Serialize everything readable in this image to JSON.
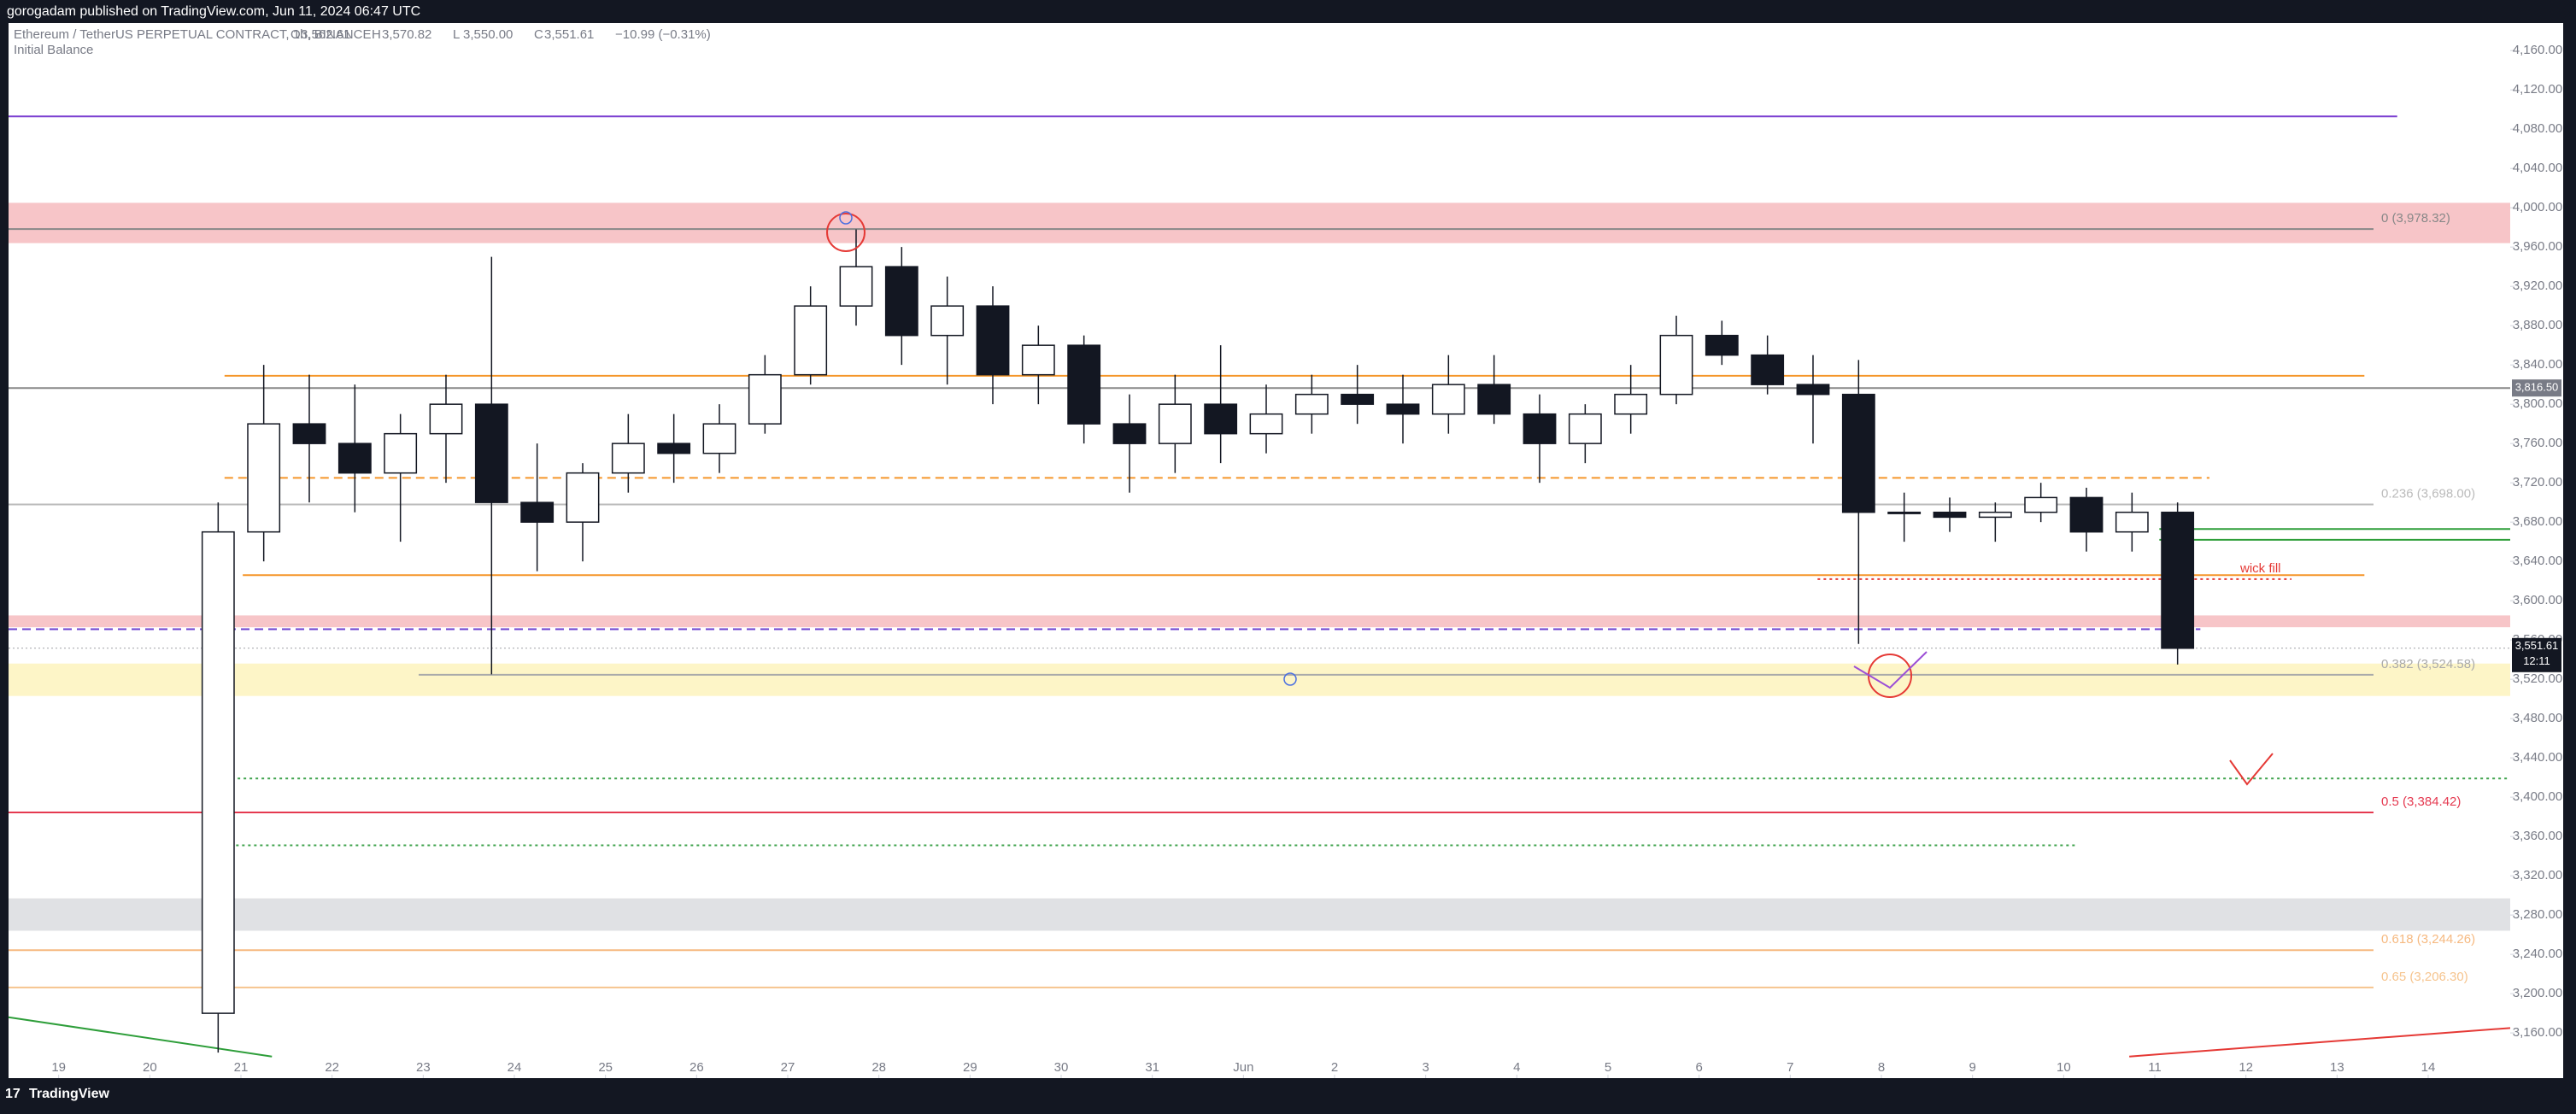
{
  "header": {
    "publisher": "gorogadam published on TradingView.com, Jun 11, 2024 06:47 UTC"
  },
  "footer": {
    "brand": "TradingView"
  },
  "chart_data": {
    "type": "candlestick",
    "symbol": "Ethereum / TetherUS PERPETUAL CONTRACT, 1h, BINANCE",
    "ohlc_legend": [
      {
        "key": "O",
        "text": "3,562.61"
      },
      {
        "key": "H",
        "text": "3,570.82"
      },
      {
        "key": "L",
        "text": "3,550.00"
      },
      {
        "key": "C",
        "text": "3,551.61"
      }
    ],
    "change": "−10.99 (−0.31%)",
    "indicator": "Initial Balance",
    "x": [
      1.5,
      2,
      2.5,
      3,
      3.5,
      4,
      4.5,
      5,
      5.5,
      6,
      6.5,
      7,
      7.5,
      8,
      8.5,
      9,
      9.5,
      10,
      10.5,
      11,
      11.5,
      12,
      12.5,
      13,
      13.5,
      14,
      14.5,
      15,
      15.5,
      16,
      16.5,
      17,
      17.5,
      18,
      18.5,
      19,
      19.5,
      20,
      20.5,
      21,
      21.5,
      22,
      22.5,
      23
    ],
    "open": [
      3180,
      3670,
      3780,
      3760,
      3730,
      3770,
      3800,
      3700,
      3680,
      3730,
      3760,
      3750,
      3780,
      3830,
      3900,
      3940,
      3870,
      3900,
      3830,
      3860,
      3780,
      3760,
      3800,
      3770,
      3790,
      3810,
      3800,
      3790,
      3820,
      3790,
      3760,
      3790,
      3810,
      3870,
      3850,
      3820,
      3810,
      3690,
      3690,
      3685,
      3690,
      3705,
      3670,
      3690
    ],
    "high": [
      3700,
      3840,
      3830,
      3820,
      3790,
      3830,
      3950,
      3760,
      3740,
      3790,
      3790,
      3800,
      3850,
      3920,
      3978,
      3960,
      3930,
      3920,
      3880,
      3870,
      3810,
      3830,
      3860,
      3820,
      3830,
      3840,
      3830,
      3850,
      3850,
      3810,
      3800,
      3840,
      3890,
      3885,
      3870,
      3850,
      3845,
      3710,
      3705,
      3700,
      3720,
      3715,
      3710,
      3700
    ],
    "low": [
      3140,
      3640,
      3700,
      3690,
      3660,
      3720,
      3525,
      3630,
      3640,
      3710,
      3720,
      3730,
      3770,
      3820,
      3880,
      3840,
      3820,
      3800,
      3800,
      3760,
      3710,
      3730,
      3740,
      3750,
      3770,
      3780,
      3760,
      3770,
      3780,
      3720,
      3740,
      3770,
      3800,
      3840,
      3810,
      3760,
      3556,
      3660,
      3670,
      3660,
      3680,
      3650,
      3650,
      3535
    ],
    "close": [
      3670,
      3780,
      3760,
      3730,
      3770,
      3800,
      3700,
      3680,
      3730,
      3760,
      3750,
      3780,
      3830,
      3900,
      3940,
      3870,
      3900,
      3830,
      3860,
      3780,
      3760,
      3800,
      3770,
      3790,
      3810,
      3800,
      3790,
      3820,
      3790,
      3760,
      3790,
      3810,
      3870,
      3850,
      3820,
      3810,
      3690,
      3690,
      3685,
      3690,
      3705,
      3670,
      3690,
      3551.61
    ],
    "last_price": {
      "value": 3551.61,
      "label": "3,551.61",
      "countdown": "12:11"
    },
    "xlim": [
      -0.55,
      26.9
    ],
    "ylim": [
      3114,
      4188
    ],
    "xticks": [
      {
        "value": 0,
        "label": "19"
      },
      {
        "value": 1,
        "label": "20"
      },
      {
        "value": 2,
        "label": "21"
      },
      {
        "value": 3,
        "label": "22"
      },
      {
        "value": 4,
        "label": "23"
      },
      {
        "value": 5,
        "label": "24"
      },
      {
        "value": 6,
        "label": "25"
      },
      {
        "value": 7,
        "label": "26"
      },
      {
        "value": 8,
        "label": "27"
      },
      {
        "value": 9,
        "label": "28"
      },
      {
        "value": 10,
        "label": "29"
      },
      {
        "value": 11,
        "label": "30"
      },
      {
        "value": 12,
        "label": "31"
      },
      {
        "value": 13,
        "label": "Jun"
      },
      {
        "value": 14,
        "label": "2"
      },
      {
        "value": 15,
        "label": "3"
      },
      {
        "value": 16,
        "label": "4"
      },
      {
        "value": 17,
        "label": "5"
      },
      {
        "value": 18,
        "label": "6"
      },
      {
        "value": 19,
        "label": "7"
      },
      {
        "value": 20,
        "label": "8"
      },
      {
        "value": 21,
        "label": "9"
      },
      {
        "value": 22,
        "label": "10"
      },
      {
        "value": 23,
        "label": "11"
      },
      {
        "value": 24,
        "label": "12"
      },
      {
        "value": 25,
        "label": "13"
      },
      {
        "value": 26,
        "label": "14"
      }
    ],
    "yticks": [
      {
        "value": 4160,
        "label": "4,160.00"
      },
      {
        "value": 4120,
        "label": "4,120.00"
      },
      {
        "value": 4080,
        "label": "4,080.00"
      },
      {
        "value": 4040,
        "label": "4,040.00"
      },
      {
        "value": 4000,
        "label": "4,000.00"
      },
      {
        "value": 3960,
        "label": "3,960.00"
      },
      {
        "value": 3920,
        "label": "3,920.00"
      },
      {
        "value": 3880,
        "label": "3,880.00"
      },
      {
        "value": 3840,
        "label": "3,840.00"
      },
      {
        "value": 3800,
        "label": "3,800.00"
      },
      {
        "value": 3760,
        "label": "3,760.00"
      },
      {
        "value": 3720,
        "label": "3,720.00"
      },
      {
        "value": 3680,
        "label": "3,680.00"
      },
      {
        "value": 3640,
        "label": "3,640.00"
      },
      {
        "value": 3600,
        "label": "3,600.00"
      },
      {
        "value": 3560,
        "label": "3,560.00"
      },
      {
        "value": 3520,
        "label": "3,520.00"
      },
      {
        "value": 3480,
        "label": "3,480.00"
      },
      {
        "value": 3440,
        "label": "3,440.00"
      },
      {
        "value": 3400,
        "label": "3,400.00"
      },
      {
        "value": 3360,
        "label": "3,360.00"
      },
      {
        "value": 3320,
        "label": "3,320.00"
      },
      {
        "value": 3280,
        "label": "3,280.00"
      },
      {
        "value": 3240,
        "label": "3,240.00"
      },
      {
        "value": 3200,
        "label": "3,200.00"
      },
      {
        "value": 3160,
        "label": "3,160.00"
      }
    ],
    "zones": [
      {
        "range": [
          3964,
          4005
        ],
        "color": "#f7c5c8"
      },
      {
        "range": [
          3573,
          3585
        ],
        "color": "#f7c5c8"
      },
      {
        "range": [
          3503,
          3536
        ],
        "color": "#fdf5c7"
      },
      {
        "range": [
          3264,
          3297
        ],
        "color": "#e0e1e4"
      }
    ],
    "levels": [
      {
        "price": 4093,
        "x": [
          -0.55,
          25.66
        ],
        "color": "#7b3fd0",
        "dash": "solid"
      },
      {
        "price": 3978.32,
        "x": [
          -0.55,
          25.4
        ],
        "color": "#888888",
        "dash": "solid",
        "label": "0 (3,978.32)"
      },
      {
        "price": 3829,
        "x": [
          1.82,
          25.3
        ],
        "color": "#f5962a",
        "dash": "solid"
      },
      {
        "price": 3816.5,
        "x": [
          -0.55,
          26.9
        ],
        "color": "#888888",
        "dash": "solid",
        "tag": "3,816.50"
      },
      {
        "price": 3725,
        "x": [
          1.82,
          23.6
        ],
        "color": "#f5962a",
        "dash": "dashed"
      },
      {
        "price": 3698,
        "x": [
          -0.55,
          25.4
        ],
        "color": "#bbbbbb",
        "dash": "solid",
        "label": "0.236 (3,698.00)"
      },
      {
        "price": 3673,
        "x": [
          23.05,
          26.9
        ],
        "color": "#2e9e3a",
        "dash": "solid"
      },
      {
        "price": 3662,
        "x": [
          23.05,
          26.9
        ],
        "color": "#2e9e3a",
        "dash": "solid"
      },
      {
        "price": 3626,
        "x": [
          2.02,
          25.3
        ],
        "color": "#f5962a",
        "dash": "solid"
      },
      {
        "price": 3622,
        "x": [
          19.3,
          24.5
        ],
        "color": "#e53935",
        "dash": "dotted",
        "label": "wick fill"
      },
      {
        "price": 3571,
        "x": [
          -0.55,
          23.5
        ],
        "color": "#6a3fd0",
        "dash": "dashed"
      },
      {
        "price": 3524.58,
        "x": [
          3.95,
          25.4
        ],
        "color": "#aaaaaa",
        "dash": "solid",
        "label": "0.382 (3,524.58)"
      },
      {
        "price": 3419,
        "x": [
          1.57,
          26.9
        ],
        "color": "#3fa34d",
        "dash": "dotted"
      },
      {
        "price": 3384.42,
        "x": [
          -0.55,
          25.4
        ],
        "color": "#e53950",
        "dash": "solid",
        "label": "0.5 (3,384.42)"
      },
      {
        "price": 3351,
        "x": [
          1.75,
          22.15
        ],
        "color": "#3fa34d",
        "dash": "dotted"
      },
      {
        "price": 3244.26,
        "x": [
          -0.55,
          25.4
        ],
        "color": "#f6b980",
        "dash": "solid",
        "label": "0.618 (3,244.26)"
      },
      {
        "price": 3206.3,
        "x": [
          -0.55,
          25.4
        ],
        "color": "#f6c48e",
        "dash": "solid",
        "label": "0.65 (3,206.30)"
      }
    ],
    "trendlines": [
      {
        "x": [
          -0.55,
          2.34
        ],
        "y": [
          3176,
          3136
        ],
        "color": "#2e9e3a"
      },
      {
        "x": [
          22.72,
          26.9
        ],
        "y": [
          3136,
          3165
        ],
        "color": "#e53935"
      }
    ]
  }
}
